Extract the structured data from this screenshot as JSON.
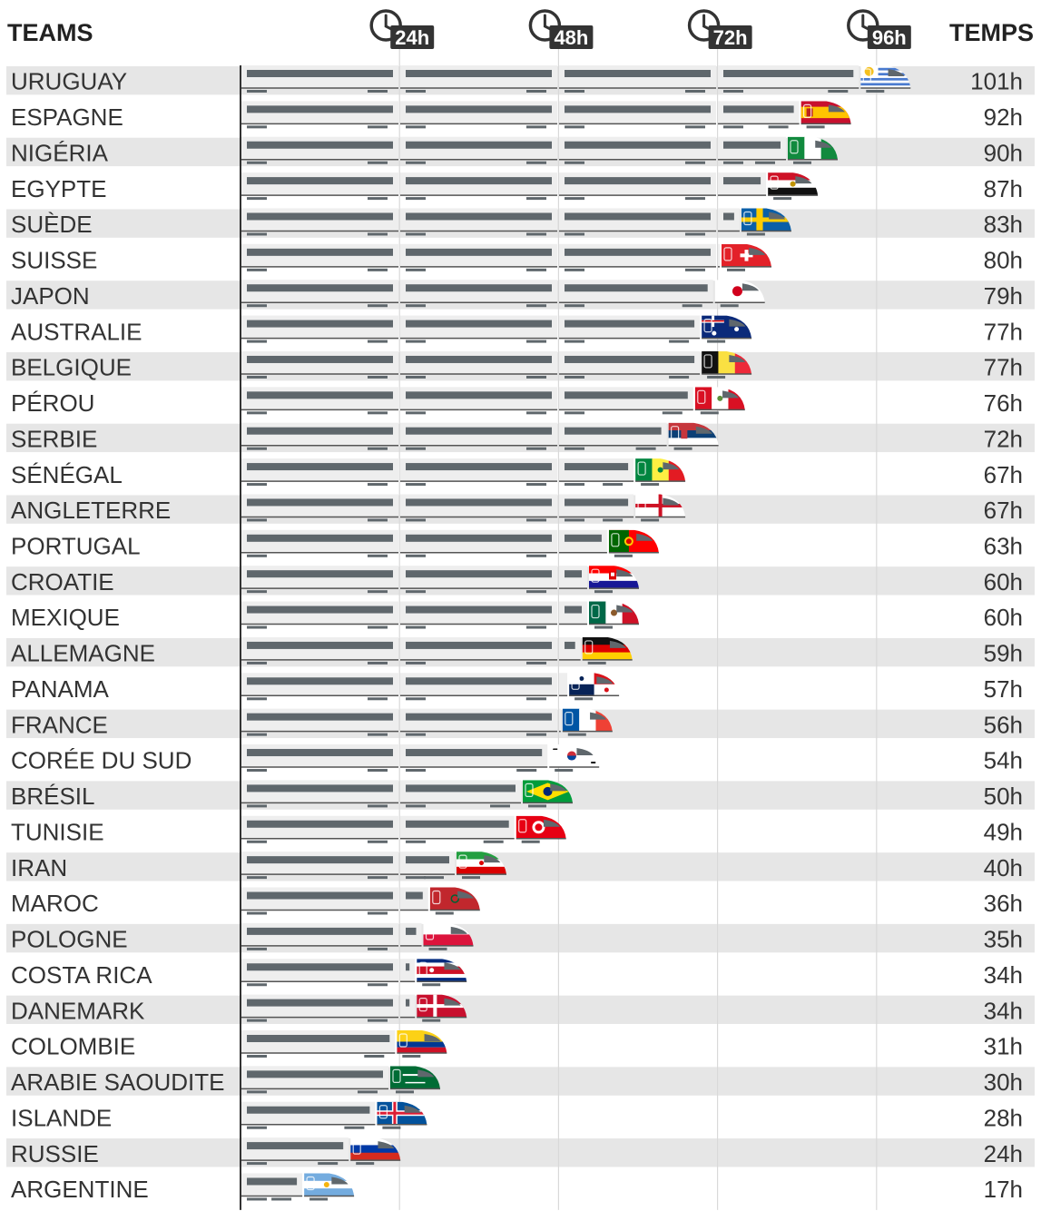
{
  "header": {
    "teams_label": "TEAMS",
    "time_label": "TEMPS"
  },
  "chart_data": {
    "type": "bar",
    "xlabel": "",
    "ylabel": "",
    "x_ticks": [
      "24h",
      "48h",
      "72h",
      "96h"
    ],
    "x_tick_values": [
      24,
      48,
      72,
      96
    ],
    "xlim": [
      0,
      101
    ],
    "grid": "vertical lines at tick values",
    "unit": "h",
    "categories": [
      "URUGUAY",
      "ESPAGNE",
      "NIGÉRIA",
      "EGYPTE",
      "SUÈDE",
      "SUISSE",
      "JAPON",
      "AUSTRALIE",
      "BELGIQUE",
      "PÉROU",
      "SERBIE",
      "SÉNÉGAL",
      "ANGLETERRE",
      "PORTUGAL",
      "CROATIE",
      "MEXIQUE",
      "ALLEMAGNE",
      "PANAMA",
      "FRANCE",
      "CORÉE DU SUD",
      "BRÉSIL",
      "TUNISIE",
      "IRAN",
      "MAROC",
      "POLOGNE",
      "COSTA RICA",
      "DANEMARK",
      "COLOMBIE",
      "ARABIE SAOUDITE",
      "ISLANDE",
      "RUSSIE",
      "ARGENTINE"
    ],
    "values": [
      101,
      92,
      90,
      87,
      83,
      80,
      79,
      77,
      77,
      76,
      72,
      67,
      67,
      63,
      60,
      60,
      59,
      57,
      56,
      54,
      50,
      49,
      40,
      36,
      35,
      34,
      34,
      31,
      30,
      28,
      24,
      17
    ],
    "value_labels": [
      "101h",
      "92h",
      "90h",
      "87h",
      "83h",
      "80h",
      "79h",
      "77h",
      "77h",
      "76h",
      "72h",
      "67h",
      "67h",
      "63h",
      "60h",
      "60h",
      "59h",
      "57h",
      "56h",
      "54h",
      "50h",
      "49h",
      "40h",
      "36h",
      "35h",
      "34h",
      "34h",
      "31h",
      "30h",
      "28h",
      "24h",
      "17h"
    ],
    "flags": [
      "uruguay",
      "spain",
      "nigeria",
      "egypt",
      "sweden",
      "switzerland",
      "japan",
      "australia",
      "belgium",
      "peru",
      "serbia",
      "senegal",
      "england",
      "portugal",
      "croatia",
      "mexico",
      "germany",
      "panama",
      "france",
      "south-korea",
      "brazil",
      "tunisia",
      "iran",
      "morocco",
      "poland",
      "costa-rica",
      "denmark",
      "colombia",
      "saudi-arabia",
      "iceland",
      "russia",
      "argentina"
    ]
  },
  "colors": {
    "row_stripe": "#e6e6e6",
    "car_body": "#eeeeee",
    "car_window": "#5f676c",
    "grid_line": "#d9d9d9",
    "axis_line": "#333333"
  }
}
